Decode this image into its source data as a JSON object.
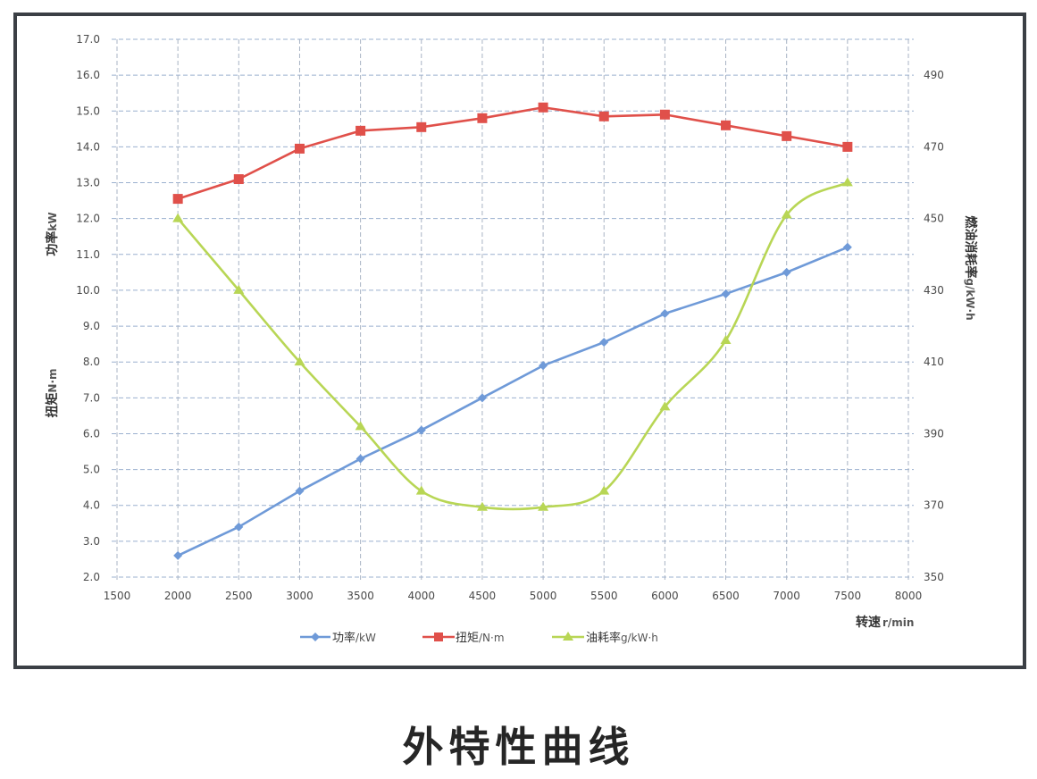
{
  "caption": "外特性曲线",
  "axes": {
    "left_title_power": "功率",
    "left_unit_power": "kW",
    "left_title_torque": "扭矩",
    "left_unit_torque": "N·m",
    "right_title": "燃油消耗率",
    "right_unit": "g/kW·h",
    "x_title": "转速",
    "x_unit": "r/min"
  },
  "legend": [
    {
      "label": "功率",
      "unit": "/kW",
      "color": "#6f9ad8",
      "marker": "diamond"
    },
    {
      "label": "扭矩",
      "unit": "/N·m",
      "color": "#e0504a",
      "marker": "square"
    },
    {
      "label": "油耗率",
      "unit": "g/kW·h",
      "color": "#b8d655",
      "marker": "triangle"
    }
  ],
  "chart_data": {
    "type": "line",
    "title": "外特性曲线",
    "xlabel": "转速 r/min",
    "ylabel_left": "功率 kW / 扭矩 N·m",
    "ylabel_right": "燃油消耗率 g/kW·h",
    "x_ticks": [
      1500,
      2000,
      2500,
      3000,
      3500,
      4000,
      4500,
      5000,
      5500,
      6000,
      6500,
      7000,
      7500,
      8000
    ],
    "y_left_ticks": [
      "17.0",
      "16.0",
      "15.0",
      "14.0",
      "13.0",
      "12.0",
      "11.0",
      "10.0",
      "9.0",
      "8.0",
      "7.0",
      "6.0",
      "5.0",
      "4.0",
      "3.0",
      "2.0"
    ],
    "y_right_ticks": [
      "490",
      "470",
      "450",
      "430",
      "410",
      "390",
      "370",
      "350"
    ],
    "xlim": [
      1500,
      8000
    ],
    "ylim_left": [
      2.0,
      17.0
    ],
    "ylim_right": [
      350,
      490
    ],
    "grid": true,
    "legend_position": "bottom",
    "x": [
      2000,
      2500,
      3000,
      3500,
      4000,
      4500,
      5000,
      5500,
      6000,
      6500,
      7000,
      7500
    ],
    "series": [
      {
        "name": "功率/kW",
        "axis": "left",
        "color": "#6f9ad8",
        "values": [
          2.6,
          3.4,
          4.4,
          5.3,
          6.1,
          7.0,
          7.9,
          8.55,
          9.35,
          9.9,
          10.5,
          11.2
        ]
      },
      {
        "name": "扭矩/N·m",
        "axis": "left",
        "color": "#e0504a",
        "values": [
          12.55,
          13.1,
          13.95,
          14.45,
          14.55,
          14.8,
          15.1,
          14.85,
          14.9,
          14.6,
          14.3,
          14.0
        ]
      },
      {
        "name": "油耗率g/kW·h",
        "axis": "right",
        "color": "#b8d655",
        "values": [
          450,
          430,
          410,
          392,
          374,
          369.5,
          369.5,
          374,
          397.5,
          416,
          451,
          460
        ]
      }
    ]
  }
}
